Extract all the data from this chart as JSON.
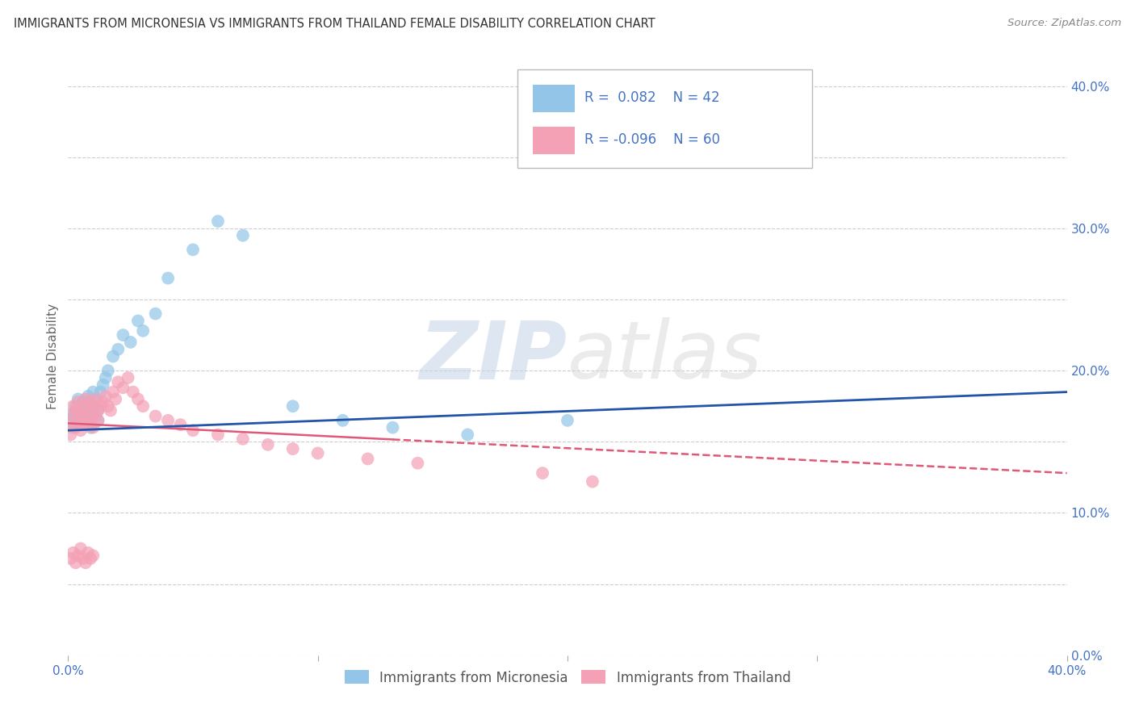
{
  "title": "IMMIGRANTS FROM MICRONESIA VS IMMIGRANTS FROM THAILAND FEMALE DISABILITY CORRELATION CHART",
  "source": "Source: ZipAtlas.com",
  "ylabel": "Female Disability",
  "r_blue": 0.082,
  "n_blue": 42,
  "r_pink": -0.096,
  "n_pink": 60,
  "legend_label_blue": "Immigrants from Micronesia",
  "legend_label_pink": "Immigrants from Thailand",
  "color_blue": "#92C5E8",
  "color_pink": "#F4A0B5",
  "trendline_blue": "#2255AA",
  "trendline_pink": "#E05878",
  "bg_color": "#FFFFFF",
  "grid_color": "#CCCCCC",
  "title_color": "#333333",
  "axis_label_color": "#4472C4",
  "blue_scatter_x": [
    0.001,
    0.002,
    0.002,
    0.003,
    0.003,
    0.004,
    0.004,
    0.005,
    0.005,
    0.006,
    0.006,
    0.007,
    0.007,
    0.008,
    0.008,
    0.009,
    0.009,
    0.01,
    0.01,
    0.011,
    0.012,
    0.012,
    0.013,
    0.014,
    0.015,
    0.016,
    0.018,
    0.02,
    0.022,
    0.025,
    0.028,
    0.03,
    0.035,
    0.04,
    0.05,
    0.06,
    0.07,
    0.09,
    0.11,
    0.13,
    0.16,
    0.2
  ],
  "blue_scatter_y": [
    0.165,
    0.17,
    0.16,
    0.175,
    0.168,
    0.162,
    0.18,
    0.172,
    0.165,
    0.17,
    0.178,
    0.165,
    0.175,
    0.168,
    0.182,
    0.16,
    0.175,
    0.17,
    0.185,
    0.178,
    0.172,
    0.165,
    0.185,
    0.19,
    0.195,
    0.2,
    0.21,
    0.215,
    0.225,
    0.22,
    0.235,
    0.228,
    0.24,
    0.265,
    0.285,
    0.305,
    0.295,
    0.175,
    0.165,
    0.16,
    0.155,
    0.165
  ],
  "pink_scatter_x": [
    0.001,
    0.001,
    0.002,
    0.002,
    0.003,
    0.003,
    0.004,
    0.004,
    0.005,
    0.005,
    0.006,
    0.006,
    0.007,
    0.007,
    0.008,
    0.008,
    0.009,
    0.009,
    0.01,
    0.01,
    0.011,
    0.011,
    0.012,
    0.012,
    0.013,
    0.014,
    0.015,
    0.016,
    0.017,
    0.018,
    0.019,
    0.02,
    0.022,
    0.024,
    0.026,
    0.028,
    0.03,
    0.035,
    0.04,
    0.045,
    0.05,
    0.06,
    0.07,
    0.08,
    0.09,
    0.1,
    0.12,
    0.14,
    0.19,
    0.21,
    0.001,
    0.002,
    0.003,
    0.004,
    0.005,
    0.006,
    0.007,
    0.008,
    0.009,
    0.01
  ],
  "pink_scatter_y": [
    0.155,
    0.162,
    0.168,
    0.175,
    0.16,
    0.172,
    0.165,
    0.178,
    0.158,
    0.17,
    0.162,
    0.175,
    0.168,
    0.18,
    0.162,
    0.172,
    0.165,
    0.178,
    0.16,
    0.175,
    0.168,
    0.18,
    0.172,
    0.165,
    0.175,
    0.178,
    0.182,
    0.175,
    0.172,
    0.185,
    0.18,
    0.192,
    0.188,
    0.195,
    0.185,
    0.18,
    0.175,
    0.168,
    0.165,
    0.162,
    0.158,
    0.155,
    0.152,
    0.148,
    0.145,
    0.142,
    0.138,
    0.135,
    0.128,
    0.122,
    0.068,
    0.072,
    0.065,
    0.07,
    0.075,
    0.068,
    0.065,
    0.072,
    0.068,
    0.07
  ],
  "xmin": 0.0,
  "xmax": 0.4,
  "ymin": 0.0,
  "ymax": 0.42,
  "yticks": [
    0.0,
    0.1,
    0.2,
    0.3,
    0.4
  ],
  "ytick_labels": [
    "0.0%",
    "10.0%",
    "20.0%",
    "30.0%",
    "40.0%"
  ]
}
